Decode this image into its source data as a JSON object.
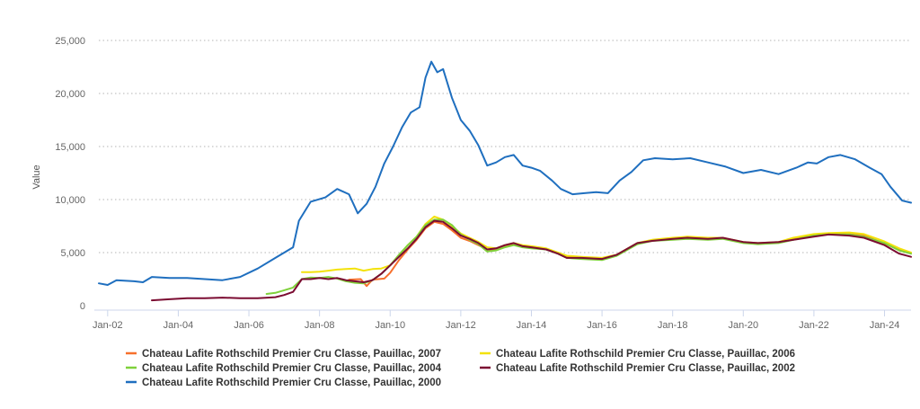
{
  "chart_data": {
    "type": "line",
    "title": "",
    "xlabel": "",
    "ylabel": "Value",
    "ylim": [
      0,
      25000
    ],
    "xlim": [
      "2001-10",
      "2024-10"
    ],
    "y_ticks": [
      "0",
      "5,000",
      "10,000",
      "15,000",
      "20,000",
      "25,000"
    ],
    "y_tick_values": [
      0,
      5000,
      10000,
      15000,
      20000,
      25000
    ],
    "x_ticks": [
      "Jan-02",
      "Jan-04",
      "Jan-06",
      "Jan-08",
      "Jan-10",
      "Jan-12",
      "Jan-14",
      "Jan-16",
      "Jan-18",
      "Jan-20",
      "Jan-22",
      "Jan-24"
    ],
    "x_tick_dates": [
      "2002-01",
      "2004-01",
      "2006-01",
      "2008-01",
      "2010-01",
      "2012-01",
      "2014-01",
      "2016-01",
      "2018-01",
      "2020-01",
      "2022-01",
      "2024-01"
    ],
    "grid": "horizontal dotted",
    "legend_position": "bottom",
    "series": [
      {
        "name": "Chateau Lafite Rothschild Premier Cru Classe, Pauillac, 2007",
        "color": "#f7702d",
        "points": [
          [
            "2008-11",
            2450
          ],
          [
            "2009-03",
            2500
          ],
          [
            "2009-05",
            1850
          ],
          [
            "2009-07",
            2450
          ],
          [
            "2009-11",
            2550
          ],
          [
            "2010-01",
            3100
          ],
          [
            "2010-04",
            4300
          ],
          [
            "2010-07",
            5300
          ],
          [
            "2010-10",
            6200
          ],
          [
            "2011-01",
            7300
          ],
          [
            "2011-04",
            7900
          ],
          [
            "2011-07",
            7700
          ],
          [
            "2011-10",
            7100
          ],
          [
            "2012-01",
            6400
          ],
          [
            "2012-04",
            6100
          ],
          [
            "2012-07",
            5700
          ],
          [
            "2012-10",
            5300
          ],
          [
            "2013-01",
            5300
          ],
          [
            "2013-04",
            5600
          ],
          [
            "2013-07",
            5800
          ],
          [
            "2013-10",
            5600
          ],
          [
            "2014-01",
            5450
          ],
          [
            "2014-06",
            5350
          ],
          [
            "2014-10",
            4900
          ],
          [
            "2015-01",
            4600
          ],
          [
            "2015-06",
            4500
          ],
          [
            "2016-01",
            4400
          ],
          [
            "2016-06",
            4750
          ],
          [
            "2017-01",
            5850
          ],
          [
            "2017-06",
            6150
          ],
          [
            "2018-01",
            6350
          ],
          [
            "2018-06",
            6350
          ],
          [
            "2019-01",
            6350
          ],
          [
            "2019-06",
            6350
          ],
          [
            "2020-01",
            5950
          ],
          [
            "2020-06",
            5850
          ],
          [
            "2021-01",
            5950
          ],
          [
            "2021-06",
            6250
          ],
          [
            "2022-01",
            6650
          ],
          [
            "2022-06",
            6700
          ],
          [
            "2023-01",
            6750
          ],
          [
            "2023-06",
            6600
          ],
          [
            "2024-01",
            5850
          ],
          [
            "2024-06",
            5250
          ],
          [
            "2024-10",
            4950
          ]
        ]
      },
      {
        "name": "Chateau Lafite Rothschild Premier Cru Classe, Pauillac, 2006",
        "color": "#f3e20a",
        "points": [
          [
            "2007-07",
            3150
          ],
          [
            "2007-10",
            3150
          ],
          [
            "2008-01",
            3200
          ],
          [
            "2008-04",
            3300
          ],
          [
            "2008-07",
            3400
          ],
          [
            "2008-10",
            3450
          ],
          [
            "2009-01",
            3500
          ],
          [
            "2009-04",
            3300
          ],
          [
            "2009-07",
            3450
          ],
          [
            "2009-10",
            3500
          ],
          [
            "2010-01",
            3800
          ],
          [
            "2010-04",
            4700
          ],
          [
            "2010-07",
            5700
          ],
          [
            "2010-10",
            6500
          ],
          [
            "2011-01",
            7700
          ],
          [
            "2011-04",
            8400
          ],
          [
            "2011-07",
            8100
          ],
          [
            "2011-10",
            7500
          ],
          [
            "2012-01",
            6800
          ],
          [
            "2012-04",
            6400
          ],
          [
            "2012-07",
            6000
          ],
          [
            "2012-10",
            5500
          ],
          [
            "2013-01",
            5400
          ],
          [
            "2013-04",
            5700
          ],
          [
            "2013-07",
            5900
          ],
          [
            "2013-10",
            5700
          ],
          [
            "2014-01",
            5600
          ],
          [
            "2014-06",
            5400
          ],
          [
            "2014-10",
            5000
          ],
          [
            "2015-01",
            4700
          ],
          [
            "2015-06",
            4600
          ],
          [
            "2016-01",
            4500
          ],
          [
            "2016-06",
            4800
          ],
          [
            "2017-01",
            5900
          ],
          [
            "2017-06",
            6200
          ],
          [
            "2018-01",
            6400
          ],
          [
            "2018-06",
            6500
          ],
          [
            "2019-01",
            6400
          ],
          [
            "2019-06",
            6400
          ],
          [
            "2020-01",
            6000
          ],
          [
            "2020-06",
            5900
          ],
          [
            "2021-01",
            6000
          ],
          [
            "2021-06",
            6400
          ],
          [
            "2022-01",
            6750
          ],
          [
            "2022-06",
            6850
          ],
          [
            "2023-01",
            6900
          ],
          [
            "2023-06",
            6750
          ],
          [
            "2024-01",
            6050
          ],
          [
            "2024-06",
            5400
          ],
          [
            "2024-10",
            5000
          ]
        ]
      },
      {
        "name": "Chateau Lafite Rothschild Premier Cru Classe, Pauillac, 2004",
        "color": "#7fd13b",
        "points": [
          [
            "2006-07",
            1100
          ],
          [
            "2006-10",
            1200
          ],
          [
            "2007-01",
            1450
          ],
          [
            "2007-04",
            1700
          ],
          [
            "2007-07",
            2500
          ],
          [
            "2007-10",
            2650
          ],
          [
            "2008-01",
            2600
          ],
          [
            "2008-04",
            2700
          ],
          [
            "2008-07",
            2550
          ],
          [
            "2008-10",
            2300
          ],
          [
            "2009-01",
            2150
          ],
          [
            "2009-04",
            2100
          ],
          [
            "2009-07",
            2400
          ],
          [
            "2009-10",
            3000
          ],
          [
            "2010-01",
            3800
          ],
          [
            "2010-04",
            4800
          ],
          [
            "2010-07",
            5700
          ],
          [
            "2010-10",
            6500
          ],
          [
            "2011-01",
            7600
          ],
          [
            "2011-04",
            8100
          ],
          [
            "2011-07",
            8100
          ],
          [
            "2011-10",
            7600
          ],
          [
            "2012-01",
            6700
          ],
          [
            "2012-04",
            6200
          ],
          [
            "2012-07",
            5800
          ],
          [
            "2012-10",
            5100
          ],
          [
            "2013-01",
            5200
          ],
          [
            "2013-04",
            5500
          ],
          [
            "2013-07",
            5700
          ],
          [
            "2013-10",
            5500
          ],
          [
            "2014-01",
            5400
          ],
          [
            "2014-06",
            5300
          ],
          [
            "2014-10",
            4900
          ],
          [
            "2015-01",
            4500
          ],
          [
            "2015-06",
            4400
          ],
          [
            "2016-01",
            4300
          ],
          [
            "2016-06",
            4700
          ],
          [
            "2017-01",
            5800
          ],
          [
            "2017-06",
            6100
          ],
          [
            "2018-01",
            6200
          ],
          [
            "2018-06",
            6300
          ],
          [
            "2019-01",
            6200
          ],
          [
            "2019-06",
            6300
          ],
          [
            "2020-01",
            5900
          ],
          [
            "2020-06",
            5800
          ],
          [
            "2021-01",
            5900
          ],
          [
            "2021-06",
            6200
          ],
          [
            "2022-01",
            6600
          ],
          [
            "2022-06",
            6700
          ],
          [
            "2023-01",
            6700
          ],
          [
            "2023-06",
            6500
          ],
          [
            "2024-01",
            5900
          ],
          [
            "2024-06",
            5200
          ],
          [
            "2024-10",
            4900
          ]
        ]
      },
      {
        "name": "Chateau Lafite Rothschild Premier Cru Classe, Pauillac, 2002",
        "color": "#7b0c32",
        "points": [
          [
            "2003-04",
            500
          ],
          [
            "2003-10",
            600
          ],
          [
            "2004-04",
            700
          ],
          [
            "2004-10",
            700
          ],
          [
            "2005-04",
            750
          ],
          [
            "2005-10",
            700
          ],
          [
            "2006-04",
            700
          ],
          [
            "2006-10",
            800
          ],
          [
            "2007-01",
            1000
          ],
          [
            "2007-04",
            1300
          ],
          [
            "2007-07",
            2500
          ],
          [
            "2007-10",
            2500
          ],
          [
            "2008-01",
            2600
          ],
          [
            "2008-04",
            2500
          ],
          [
            "2008-07",
            2600
          ],
          [
            "2008-10",
            2400
          ],
          [
            "2009-01",
            2300
          ],
          [
            "2009-04",
            2200
          ],
          [
            "2009-07",
            2400
          ],
          [
            "2009-10",
            3000
          ],
          [
            "2010-01",
            3800
          ],
          [
            "2010-04",
            4600
          ],
          [
            "2010-07",
            5400
          ],
          [
            "2010-10",
            6300
          ],
          [
            "2011-01",
            7400
          ],
          [
            "2011-04",
            8000
          ],
          [
            "2011-07",
            7900
          ],
          [
            "2011-10",
            7300
          ],
          [
            "2012-01",
            6600
          ],
          [
            "2012-04",
            6300
          ],
          [
            "2012-07",
            5900
          ],
          [
            "2012-10",
            5300
          ],
          [
            "2013-01",
            5400
          ],
          [
            "2013-04",
            5700
          ],
          [
            "2013-07",
            5900
          ],
          [
            "2013-10",
            5600
          ],
          [
            "2014-01",
            5500
          ],
          [
            "2014-06",
            5300
          ],
          [
            "2014-10",
            4900
          ],
          [
            "2015-01",
            4500
          ],
          [
            "2015-06",
            4500
          ],
          [
            "2016-01",
            4400
          ],
          [
            "2016-06",
            4800
          ],
          [
            "2017-01",
            5900
          ],
          [
            "2017-06",
            6100
          ],
          [
            "2018-01",
            6300
          ],
          [
            "2018-06",
            6400
          ],
          [
            "2019-01",
            6300
          ],
          [
            "2019-06",
            6400
          ],
          [
            "2020-01",
            6000
          ],
          [
            "2020-06",
            5900
          ],
          [
            "2021-01",
            6000
          ],
          [
            "2021-06",
            6200
          ],
          [
            "2022-01",
            6500
          ],
          [
            "2022-06",
            6700
          ],
          [
            "2023-01",
            6600
          ],
          [
            "2023-06",
            6400
          ],
          [
            "2024-01",
            5700
          ],
          [
            "2024-06",
            4900
          ],
          [
            "2024-10",
            4600
          ]
        ]
      },
      {
        "name": "Chateau Lafite Rothschild Premier Cru Classe, Pauillac, 2000",
        "color": "#1f6fbf",
        "points": [
          [
            "2001-10",
            2100
          ],
          [
            "2002-01",
            1950
          ],
          [
            "2002-04",
            2400
          ],
          [
            "2002-10",
            2300
          ],
          [
            "2003-01",
            2200
          ],
          [
            "2003-04",
            2700
          ],
          [
            "2003-10",
            2600
          ],
          [
            "2004-04",
            2600
          ],
          [
            "2004-10",
            2500
          ],
          [
            "2005-04",
            2400
          ],
          [
            "2005-10",
            2700
          ],
          [
            "2006-04",
            3500
          ],
          [
            "2006-10",
            4500
          ],
          [
            "2007-04",
            5500
          ],
          [
            "2007-06",
            8000
          ],
          [
            "2007-10",
            9800
          ],
          [
            "2008-03",
            10200
          ],
          [
            "2008-07",
            11000
          ],
          [
            "2008-11",
            10500
          ],
          [
            "2009-02",
            8700
          ],
          [
            "2009-05",
            9600
          ],
          [
            "2009-08",
            11200
          ],
          [
            "2009-11",
            13400
          ],
          [
            "2010-02",
            15000
          ],
          [
            "2010-05",
            16800
          ],
          [
            "2010-08",
            18200
          ],
          [
            "2010-11",
            18700
          ],
          [
            "2011-01",
            21500
          ],
          [
            "2011-03",
            23000
          ],
          [
            "2011-05",
            22000
          ],
          [
            "2011-07",
            22300
          ],
          [
            "2011-10",
            19600
          ],
          [
            "2012-01",
            17500
          ],
          [
            "2012-04",
            16500
          ],
          [
            "2012-07",
            15100
          ],
          [
            "2012-10",
            13200
          ],
          [
            "2013-01",
            13500
          ],
          [
            "2013-04",
            14000
          ],
          [
            "2013-07",
            14200
          ],
          [
            "2013-10",
            13200
          ],
          [
            "2014-01",
            13000
          ],
          [
            "2014-04",
            12700
          ],
          [
            "2014-08",
            11800
          ],
          [
            "2014-11",
            11000
          ],
          [
            "2015-03",
            10500
          ],
          [
            "2015-07",
            10600
          ],
          [
            "2015-11",
            10700
          ],
          [
            "2016-03",
            10600
          ],
          [
            "2016-07",
            11800
          ],
          [
            "2016-11",
            12600
          ],
          [
            "2017-03",
            13700
          ],
          [
            "2017-07",
            13900
          ],
          [
            "2018-01",
            13800
          ],
          [
            "2018-07",
            13900
          ],
          [
            "2019-01",
            13500
          ],
          [
            "2019-07",
            13100
          ],
          [
            "2020-01",
            12500
          ],
          [
            "2020-07",
            12800
          ],
          [
            "2021-01",
            12400
          ],
          [
            "2021-07",
            13000
          ],
          [
            "2021-11",
            13500
          ],
          [
            "2022-02",
            13400
          ],
          [
            "2022-06",
            14000
          ],
          [
            "2022-10",
            14200
          ],
          [
            "2023-03",
            13800
          ],
          [
            "2023-08",
            13000
          ],
          [
            "2023-12",
            12400
          ],
          [
            "2024-03",
            11200
          ],
          [
            "2024-07",
            9900
          ],
          [
            "2024-10",
            9700
          ]
        ]
      }
    ]
  }
}
